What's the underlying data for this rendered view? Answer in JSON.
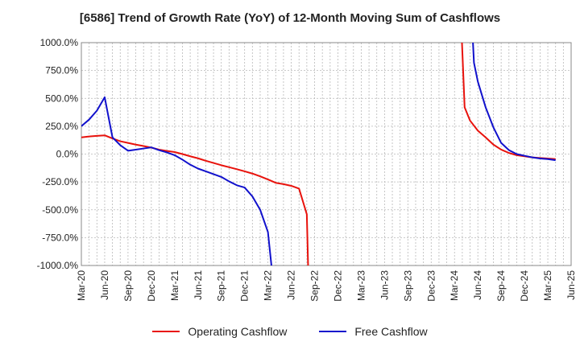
{
  "chart_data": {
    "type": "line",
    "title": "[6586]  Trend of Growth Rate (YoY) of 12-Month Moving Sum of Cashflows",
    "xlabel": "",
    "ylabel": "",
    "ylim": [
      -1000,
      1000
    ],
    "yticks": [
      1000,
      750,
      500,
      250,
      0,
      -250,
      -500,
      -750,
      -1000
    ],
    "ytick_labels": [
      "1000.0%",
      "750.0%",
      "500.0%",
      "250.0%",
      "0.0%",
      "-250.0%",
      "-500.0%",
      "-750.0%",
      "-1000.0%"
    ],
    "xtick_labels": [
      "Mar-20",
      "Jun-20",
      "Sep-20",
      "Dec-20",
      "Mar-21",
      "Jun-21",
      "Sep-21",
      "Dec-21",
      "Mar-22",
      "Jun-22",
      "Sep-22",
      "Dec-22",
      "Mar-23",
      "Jun-23",
      "Sep-23",
      "Dec-23",
      "Mar-24",
      "Jun-24",
      "Sep-24",
      "Dec-24",
      "Mar-25",
      "Jun-25"
    ],
    "x_start": "Mar-20",
    "x_months": 63,
    "series": [
      {
        "name": "Operating Cashflow",
        "color": "#e8120c",
        "segments": [
          [
            [
              0,
              150
            ],
            [
              1,
              158
            ],
            [
              2,
              163
            ],
            [
              3,
              168
            ],
            [
              4,
              140
            ],
            [
              5,
              115
            ],
            [
              6,
              100
            ],
            [
              7,
              85
            ],
            [
              8,
              72
            ],
            [
              9,
              58
            ],
            [
              10,
              40
            ],
            [
              11,
              28
            ],
            [
              12,
              18
            ],
            [
              13,
              0
            ],
            [
              14,
              -20
            ],
            [
              15,
              -38
            ],
            [
              16,
              -60
            ],
            [
              17,
              -80
            ],
            [
              18,
              -100
            ],
            [
              19,
              -118
            ],
            [
              20,
              -136
            ],
            [
              21,
              -155
            ],
            [
              22,
              -175
            ],
            [
              23,
              -200
            ],
            [
              24,
              -228
            ],
            [
              25,
              -258
            ],
            [
              26,
              -270
            ],
            [
              27,
              -285
            ],
            [
              28,
              -310
            ],
            [
              29,
              -540
            ],
            [
              29.2,
              -1100
            ]
          ],
          [
            [
              48.9,
              1100
            ],
            [
              49.3,
              420
            ],
            [
              50,
              300
            ],
            [
              51,
              210
            ],
            [
              52,
              150
            ],
            [
              53,
              85
            ],
            [
              54,
              40
            ],
            [
              55,
              10
            ],
            [
              56,
              -10
            ],
            [
              57,
              -20
            ],
            [
              58,
              -30
            ],
            [
              59,
              -35
            ],
            [
              60,
              -40
            ],
            [
              61,
              -45
            ]
          ]
        ]
      },
      {
        "name": "Free Cashflow",
        "color": "#1111cc",
        "segments": [
          [
            [
              0,
              250
            ],
            [
              1,
              310
            ],
            [
              2,
              390
            ],
            [
              3,
              510
            ],
            [
              4,
              150
            ],
            [
              5,
              80
            ],
            [
              6,
              30
            ],
            [
              7,
              40
            ],
            [
              8,
              50
            ],
            [
              9,
              60
            ],
            [
              10,
              35
            ],
            [
              11,
              15
            ],
            [
              12,
              -10
            ],
            [
              13,
              -50
            ],
            [
              14,
              -95
            ],
            [
              15,
              -130
            ],
            [
              16,
              -155
            ],
            [
              17,
              -180
            ],
            [
              18,
              -205
            ],
            [
              19,
              -245
            ],
            [
              20,
              -280
            ],
            [
              21,
              -300
            ],
            [
              22,
              -380
            ],
            [
              23,
              -500
            ],
            [
              24,
              -700
            ],
            [
              24.6,
              -1100
            ]
          ],
          [
            [
              50.3,
              1100
            ],
            [
              50.5,
              820
            ],
            [
              51,
              650
            ],
            [
              52,
              420
            ],
            [
              53,
              240
            ],
            [
              54,
              100
            ],
            [
              55,
              35
            ],
            [
              56,
              0
            ],
            [
              57,
              -15
            ],
            [
              58,
              -30
            ],
            [
              59,
              -40
            ],
            [
              60,
              -45
            ],
            [
              61,
              -55
            ]
          ]
        ]
      }
    ],
    "legend": {
      "position": "bottom",
      "entries": [
        "Operating Cashflow",
        "Free Cashflow"
      ]
    },
    "grid": true
  }
}
